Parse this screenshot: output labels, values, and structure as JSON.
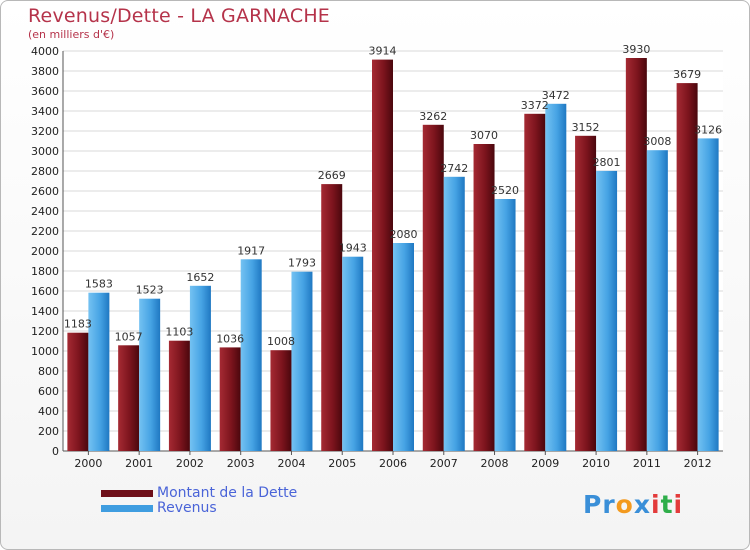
{
  "header": {
    "title": "Revenus/Dette - LA GARNACHE",
    "subtitle": "(en milliers d'€)"
  },
  "legend": {
    "items": [
      {
        "label": "Montant de la Dette",
        "color": "#6e0f18"
      },
      {
        "label": "Revenus",
        "color": "#3f9de0"
      }
    ]
  },
  "logo": {
    "text": "Proxiti",
    "letters": [
      {
        "ch": "P",
        "color": "#3a8fd8"
      },
      {
        "ch": "r",
        "color": "#3a8fd8"
      },
      {
        "ch": "o",
        "color": "#f39a1f"
      },
      {
        "ch": "x",
        "color": "#3a8fd8"
      },
      {
        "ch": "i",
        "color": "#e33b3b"
      },
      {
        "ch": "t",
        "color": "#2fae4a"
      },
      {
        "ch": "i",
        "color": "#e33b3b"
      }
    ]
  },
  "chart_data": {
    "type": "bar",
    "categories": [
      "2000",
      "2001",
      "2002",
      "2003",
      "2004",
      "2005",
      "2006",
      "2007",
      "2008",
      "2009",
      "2010",
      "2011",
      "2012"
    ],
    "series": [
      {
        "name": "Montant de la Dette",
        "color": "#6e0f18",
        "values": [
          1183,
          1057,
          1103,
          1036,
          1008,
          2669,
          3914,
          3262,
          3070,
          3372,
          3152,
          3930,
          3679
        ]
      },
      {
        "name": "Revenus",
        "color": "#3f9de0",
        "values": [
          1583,
          1523,
          1652,
          1917,
          1793,
          1943,
          2080,
          2742,
          2520,
          3472,
          2801,
          3008,
          3126
        ]
      }
    ],
    "data_labels": [
      [
        "1183",
        "1057",
        "1103",
        "1036",
        "1008",
        "2669",
        "3914",
        "3262",
        "3070",
        "3372",
        "3152",
        "3930",
        "3679"
      ],
      [
        "1583",
        "1523",
        "1652",
        "1917",
        "1793",
        "1943",
        "2080",
        "2742",
        "2520",
        "3472",
        "2801",
        "3008",
        "3126"
      ]
    ],
    "ylim": [
      0,
      4000
    ],
    "ytick_step": 200,
    "grid": true,
    "legend_position": "bottom-left"
  }
}
